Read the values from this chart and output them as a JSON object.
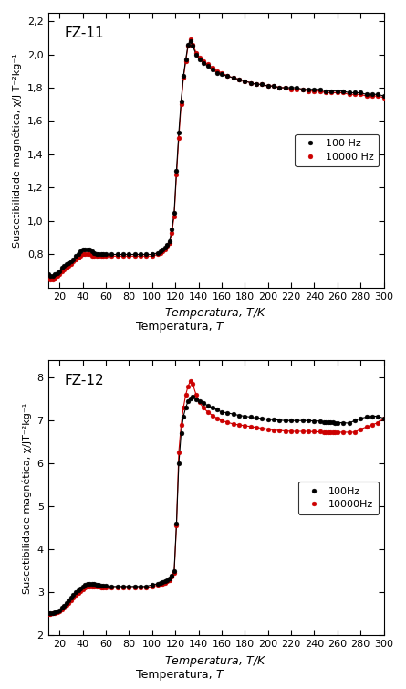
{
  "plot1": {
    "label": "FZ-11",
    "ylim": [
      0.6,
      2.25
    ],
    "yticks": [
      0.8,
      1.0,
      1.2,
      1.4,
      1.6,
      1.8,
      2.0,
      2.2
    ],
    "ylabel": "Suscetibilidade magnética, χ/J T⁻²kg⁻¹",
    "xlabel": "Temperatura, T/K",
    "legend1": "100 Hz",
    "legend2": "10000 Hz",
    "fz11_100hz_T": [
      10,
      12,
      14,
      16,
      18,
      20,
      22,
      24,
      26,
      28,
      30,
      32,
      34,
      36,
      38,
      40,
      42,
      44,
      46,
      48,
      50,
      52,
      54,
      56,
      58,
      60,
      65,
      70,
      75,
      80,
      85,
      90,
      95,
      100,
      105,
      107,
      109,
      111,
      113,
      115,
      117,
      119,
      121,
      123,
      125,
      127,
      129,
      131,
      133,
      135,
      138,
      141,
      144,
      148,
      152,
      156,
      160,
      165,
      170,
      175,
      180,
      185,
      190,
      195,
      200,
      205,
      210,
      215,
      220,
      225,
      230,
      235,
      240,
      245,
      250,
      255,
      260,
      265,
      270,
      275,
      280,
      285,
      290,
      295,
      300
    ],
    "fz11_100hz_chi": [
      0.68,
      0.67,
      0.67,
      0.68,
      0.69,
      0.7,
      0.72,
      0.73,
      0.74,
      0.75,
      0.76,
      0.77,
      0.79,
      0.8,
      0.82,
      0.83,
      0.83,
      0.83,
      0.83,
      0.82,
      0.81,
      0.8,
      0.8,
      0.8,
      0.8,
      0.8,
      0.8,
      0.8,
      0.8,
      0.8,
      0.8,
      0.8,
      0.8,
      0.8,
      0.81,
      0.82,
      0.83,
      0.84,
      0.86,
      0.88,
      0.95,
      1.05,
      1.3,
      1.53,
      1.72,
      1.87,
      1.97,
      2.06,
      2.08,
      2.05,
      2.0,
      1.97,
      1.95,
      1.93,
      1.91,
      1.89,
      1.88,
      1.87,
      1.86,
      1.85,
      1.84,
      1.83,
      1.82,
      1.82,
      1.81,
      1.81,
      1.8,
      1.8,
      1.8,
      1.8,
      1.79,
      1.79,
      1.79,
      1.79,
      1.78,
      1.78,
      1.78,
      1.78,
      1.77,
      1.77,
      1.77,
      1.76,
      1.76,
      1.76,
      1.75
    ],
    "fz11_10000hz_T": [
      10,
      12,
      14,
      16,
      18,
      20,
      22,
      24,
      26,
      28,
      30,
      32,
      34,
      36,
      38,
      40,
      42,
      44,
      46,
      48,
      50,
      52,
      54,
      56,
      58,
      60,
      65,
      70,
      75,
      80,
      85,
      90,
      95,
      100,
      105,
      107,
      109,
      111,
      113,
      115,
      117,
      119,
      121,
      123,
      125,
      127,
      129,
      131,
      133,
      135,
      138,
      141,
      144,
      148,
      152,
      156,
      160,
      165,
      170,
      175,
      180,
      185,
      190,
      195,
      200,
      205,
      210,
      215,
      220,
      225,
      230,
      235,
      240,
      245,
      250,
      255,
      260,
      265,
      270,
      275,
      280,
      285,
      290,
      295,
      300
    ],
    "fz11_10000hz_chi": [
      0.66,
      0.65,
      0.65,
      0.66,
      0.67,
      0.68,
      0.7,
      0.71,
      0.72,
      0.73,
      0.74,
      0.76,
      0.77,
      0.78,
      0.79,
      0.8,
      0.8,
      0.8,
      0.8,
      0.79,
      0.79,
      0.79,
      0.79,
      0.79,
      0.79,
      0.79,
      0.79,
      0.79,
      0.79,
      0.79,
      0.79,
      0.79,
      0.79,
      0.79,
      0.8,
      0.81,
      0.82,
      0.83,
      0.85,
      0.87,
      0.93,
      1.03,
      1.28,
      1.5,
      1.7,
      1.86,
      1.96,
      2.05,
      2.09,
      2.06,
      2.01,
      1.98,
      1.96,
      1.94,
      1.92,
      1.9,
      1.89,
      1.87,
      1.86,
      1.85,
      1.84,
      1.83,
      1.82,
      1.82,
      1.81,
      1.81,
      1.8,
      1.8,
      1.79,
      1.79,
      1.79,
      1.78,
      1.78,
      1.78,
      1.77,
      1.77,
      1.77,
      1.77,
      1.76,
      1.76,
      1.76,
      1.75,
      1.75,
      1.75,
      1.74
    ]
  },
  "plot2": {
    "label": "FZ-12",
    "ylim": [
      2.0,
      8.4
    ],
    "yticks": [
      2,
      3,
      4,
      5,
      6,
      7,
      8
    ],
    "ylabel": "Suscetibilidade magnética, χ/JT⁻²kg⁻¹",
    "xlabel": "Temperatura, T/K",
    "legend1": "100Hz",
    "legend2": "10000Hz",
    "fz12_100hz_T": [
      10,
      12,
      14,
      16,
      18,
      20,
      22,
      24,
      26,
      28,
      30,
      32,
      34,
      36,
      38,
      40,
      42,
      44,
      46,
      48,
      50,
      52,
      54,
      56,
      58,
      60,
      65,
      70,
      75,
      80,
      85,
      90,
      95,
      100,
      105,
      107,
      109,
      111,
      113,
      115,
      117,
      119,
      121,
      123,
      125,
      127,
      129,
      131,
      133,
      135,
      138,
      141,
      144,
      148,
      152,
      156,
      160,
      165,
      170,
      175,
      180,
      185,
      190,
      195,
      200,
      205,
      210,
      215,
      220,
      225,
      230,
      235,
      240,
      245,
      248,
      250,
      252,
      254,
      256,
      258,
      260,
      265,
      270,
      275,
      280,
      285,
      290,
      295,
      300
    ],
    "fz12_100hz_chi": [
      2.52,
      2.52,
      2.53,
      2.54,
      2.56,
      2.59,
      2.64,
      2.7,
      2.76,
      2.82,
      2.89,
      2.95,
      3.01,
      3.06,
      3.1,
      3.14,
      3.17,
      3.19,
      3.2,
      3.2,
      3.19,
      3.18,
      3.17,
      3.16,
      3.15,
      3.15,
      3.14,
      3.14,
      3.14,
      3.14,
      3.14,
      3.14,
      3.14,
      3.18,
      3.2,
      3.22,
      3.24,
      3.26,
      3.29,
      3.33,
      3.4,
      3.5,
      4.6,
      6.0,
      6.7,
      7.1,
      7.3,
      7.45,
      7.52,
      7.55,
      7.5,
      7.45,
      7.4,
      7.35,
      7.3,
      7.25,
      7.2,
      7.18,
      7.15,
      7.12,
      7.1,
      7.08,
      7.06,
      7.05,
      7.03,
      7.02,
      7.01,
      7.0,
      7.0,
      7.0,
      7.0,
      7.0,
      6.99,
      6.99,
      6.97,
      6.97,
      6.96,
      6.96,
      6.96,
      6.95,
      6.95,
      6.95,
      6.94,
      7.0,
      7.05,
      7.08,
      7.1,
      7.1,
      7.05
    ],
    "fz12_10000hz_T": [
      10,
      12,
      14,
      16,
      18,
      20,
      22,
      24,
      26,
      28,
      30,
      32,
      34,
      36,
      38,
      40,
      42,
      44,
      46,
      48,
      50,
      52,
      54,
      56,
      58,
      60,
      65,
      70,
      75,
      80,
      85,
      90,
      95,
      100,
      105,
      107,
      109,
      111,
      113,
      115,
      117,
      119,
      121,
      123,
      125,
      127,
      129,
      131,
      133,
      135,
      138,
      141,
      144,
      148,
      152,
      156,
      160,
      165,
      170,
      175,
      180,
      185,
      190,
      195,
      200,
      205,
      210,
      215,
      220,
      225,
      230,
      235,
      240,
      245,
      248,
      250,
      252,
      254,
      256,
      258,
      260,
      265,
      270,
      275,
      280,
      285,
      290,
      295,
      300
    ],
    "fz12_10000hz_chi": [
      2.5,
      2.5,
      2.51,
      2.52,
      2.54,
      2.57,
      2.61,
      2.66,
      2.71,
      2.76,
      2.82,
      2.88,
      2.94,
      2.99,
      3.04,
      3.08,
      3.11,
      3.13,
      3.14,
      3.14,
      3.14,
      3.13,
      3.13,
      3.12,
      3.12,
      3.12,
      3.11,
      3.11,
      3.11,
      3.11,
      3.11,
      3.11,
      3.11,
      3.14,
      3.17,
      3.19,
      3.21,
      3.23,
      3.26,
      3.29,
      3.36,
      3.45,
      4.55,
      6.27,
      6.9,
      7.3,
      7.6,
      7.8,
      7.92,
      7.85,
      7.6,
      7.42,
      7.3,
      7.2,
      7.12,
      7.05,
      7.0,
      6.96,
      6.92,
      6.9,
      6.88,
      6.86,
      6.84,
      6.82,
      6.8,
      6.78,
      6.77,
      6.76,
      6.75,
      6.75,
      6.75,
      6.75,
      6.74,
      6.74,
      6.73,
      6.73,
      6.73,
      6.73,
      6.73,
      6.73,
      6.73,
      6.73,
      6.73,
      6.73,
      6.8,
      6.85,
      6.9,
      6.95,
      7.05
    ]
  },
  "xlim": [
    10,
    300
  ],
  "xticks": [
    20,
    40,
    60,
    80,
    100,
    120,
    140,
    160,
    180,
    200,
    220,
    240,
    260,
    280,
    300
  ],
  "color_black": "#000000",
  "color_red": "#cc0000",
  "bg_color": "#ffffff",
  "marker_size": 3.5,
  "line_width": 0.8
}
